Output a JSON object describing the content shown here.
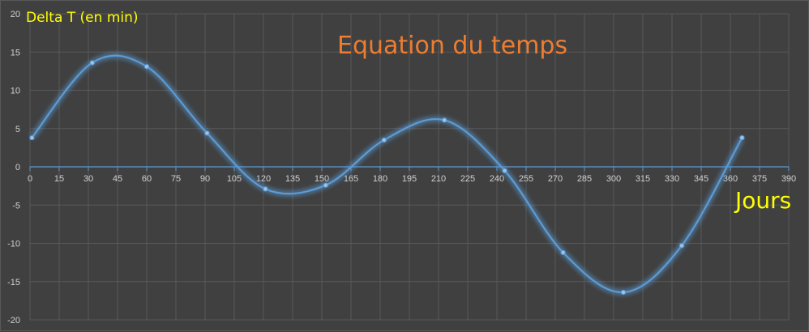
{
  "chart_data": {
    "type": "line",
    "title": "Equation du temps",
    "xlabel": "Jours",
    "ylabel": "Delta T (en min)",
    "xlim": [
      0,
      390
    ],
    "ylim": [
      -20,
      20
    ],
    "x_ticks": [
      "0",
      "15",
      "30",
      "45",
      "60",
      "75",
      "90",
      "105",
      "120",
      "135",
      "150",
      "165",
      "180",
      "195",
      "210",
      "225",
      "240",
      "255",
      "270",
      "285",
      "300",
      "315",
      "330",
      "345",
      "360",
      "375",
      "390"
    ],
    "y_ticks": [
      "-20",
      "-15",
      "-10",
      "-5",
      "0",
      "5",
      "10",
      "15",
      "20"
    ],
    "grid": true,
    "smooth": true,
    "series": [
      {
        "color": "#5b9bd5",
        "points": [
          {
            "x": 1,
            "y": 3.8
          },
          {
            "x": 32,
            "y": 13.6
          },
          {
            "x": 60,
            "y": 13.1
          },
          {
            "x": 91,
            "y": 4.4
          },
          {
            "x": 121,
            "y": -2.9
          },
          {
            "x": 152,
            "y": -2.4
          },
          {
            "x": 182,
            "y": 3.5
          },
          {
            "x": 213,
            "y": 6.1
          },
          {
            "x": 244,
            "y": -0.5
          },
          {
            "x": 274,
            "y": -11.2
          },
          {
            "x": 305,
            "y": -16.4
          },
          {
            "x": 335,
            "y": -10.3
          },
          {
            "x": 366,
            "y": 3.8
          }
        ]
      }
    ]
  }
}
